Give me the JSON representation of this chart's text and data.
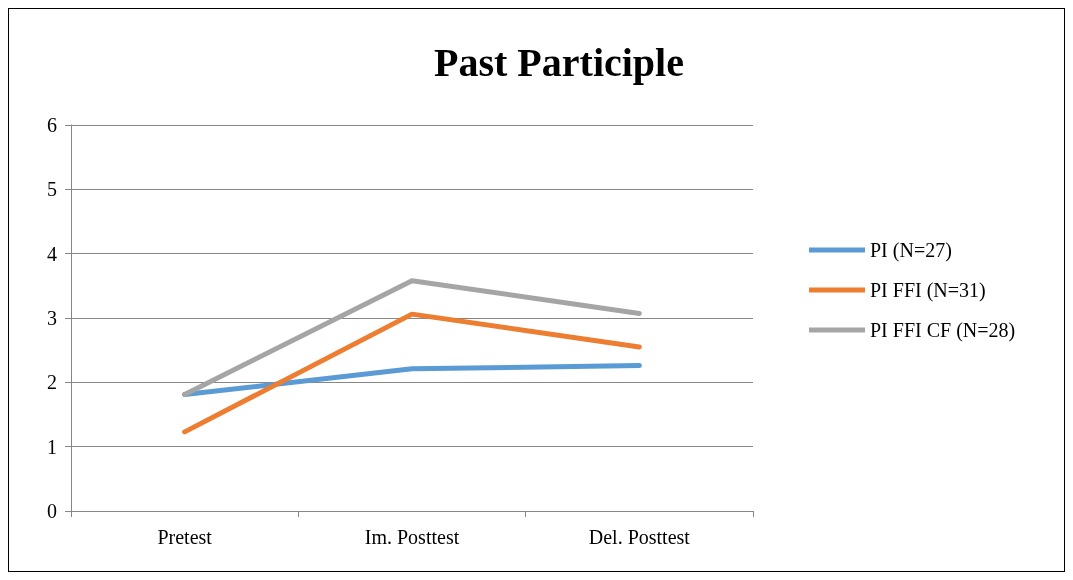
{
  "chart_data": {
    "type": "line",
    "title": "Past Participle",
    "categories": [
      "Pretest",
      "Im. Posttest",
      "Del. Posttest"
    ],
    "series": [
      {
        "name": "PI (N=27)",
        "color": "#5b9bd5",
        "values": [
          1.81,
          2.21,
          2.26
        ]
      },
      {
        "name": "PI FFI (N=31)",
        "color": "#ed7d31",
        "values": [
          1.23,
          3.06,
          2.55
        ]
      },
      {
        "name": "PI FFI CF (N=28)",
        "color": "#a5a5a5",
        "values": [
          1.81,
          3.58,
          3.07
        ]
      }
    ],
    "ylim": [
      0,
      6
    ],
    "yticks": [
      0,
      1,
      2,
      3,
      4,
      5,
      6
    ],
    "grid": "y",
    "legend": "right",
    "marker": "none",
    "line_style": "solid"
  }
}
